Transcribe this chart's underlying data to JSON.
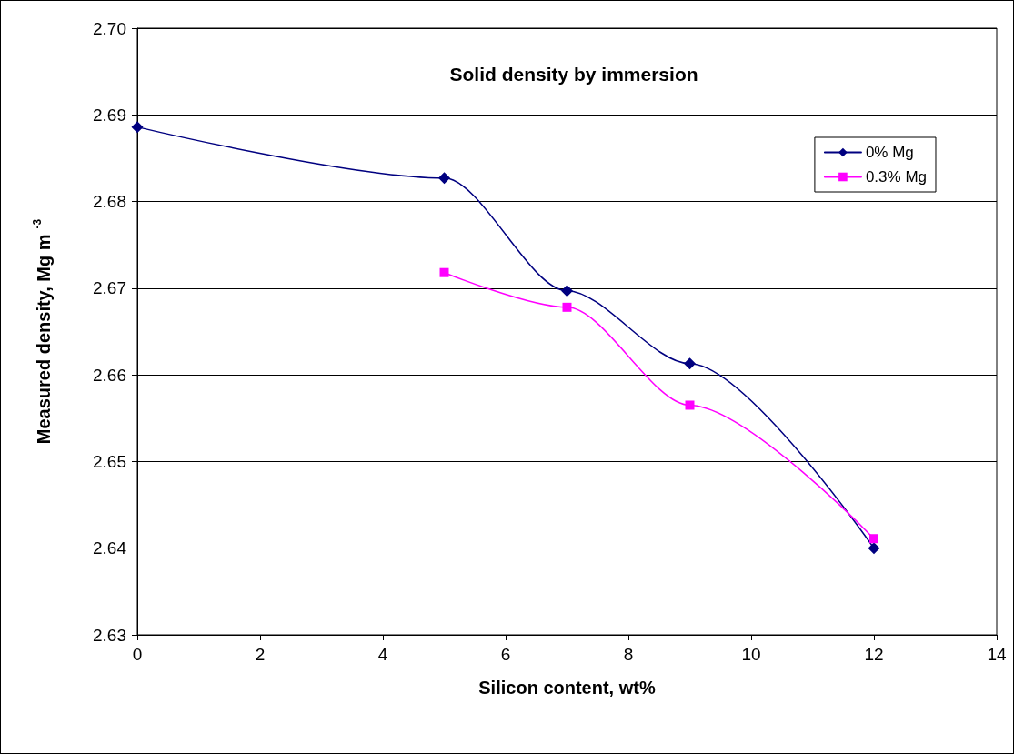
{
  "chart_data": {
    "type": "line",
    "title": "Solid density by immersion",
    "xlabel": "Silicon content, wt%",
    "ylabel": "Measured density, Mg m$^{-3}$",
    "xlim": [
      0,
      14
    ],
    "xticks": [
      0,
      2,
      4,
      6,
      8,
      10,
      12,
      14
    ],
    "ylim": [
      2.63,
      2.7
    ],
    "yticks": [
      {
        "value": 2.63,
        "label": "2.63"
      },
      {
        "value": 2.64,
        "label": "2.64"
      },
      {
        "value": 2.65,
        "label": "2.65"
      },
      {
        "value": 2.66,
        "label": "2.66"
      },
      {
        "value": 2.67,
        "label": "2.67"
      },
      {
        "value": 2.68,
        "label": "2.68"
      },
      {
        "value": 2.69,
        "label": "2.69"
      },
      {
        "value": 2.7,
        "label": "2.70"
      }
    ],
    "grid": "y",
    "legend": "top right",
    "line_style": "solid",
    "series": [
      {
        "name": "0% Mg",
        "color": "#000080",
        "marker": "diamond",
        "x": [
          0,
          5,
          7,
          9,
          12
        ],
        "values": [
          2.6886,
          2.6827,
          2.6697,
          2.6613,
          2.64
        ]
      },
      {
        "name": "0.3% Mg",
        "color": "#ff00ff",
        "marker": "square",
        "x": [
          5,
          7,
          9,
          12
        ],
        "values": [
          2.6718,
          2.6678,
          2.6565,
          2.6411
        ]
      }
    ]
  }
}
